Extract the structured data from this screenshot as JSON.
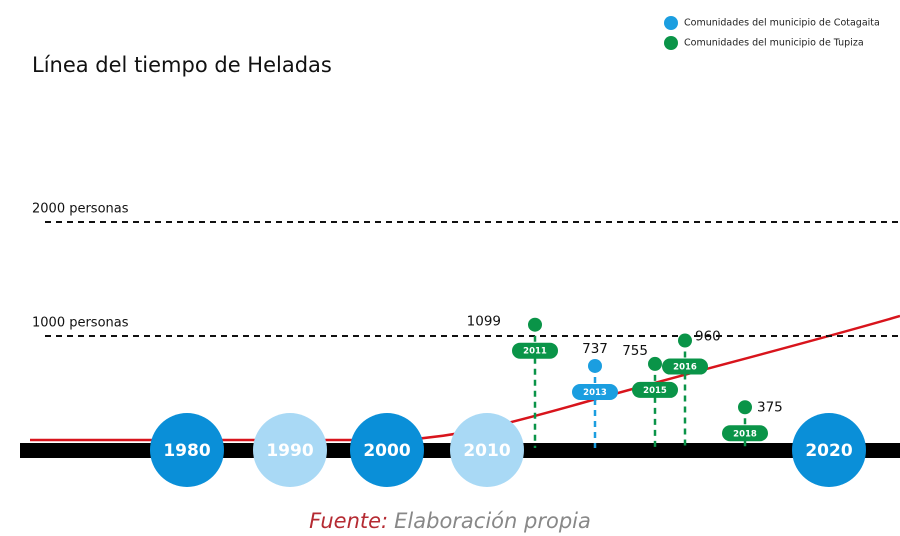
{
  "chart_data": {
    "type": "timeline",
    "title": "Línea del tiempo de Heladas",
    "source": {
      "prefix": "Fuente:",
      "text": "Elaboración propia"
    },
    "ylim": [
      0,
      2000
    ],
    "yticks": [
      {
        "value": 1000,
        "label": "1000 personas"
      },
      {
        "value": 2000,
        "label": "2000 personas"
      }
    ],
    "decades": [
      {
        "label": "1980",
        "color": "#0a8fd8"
      },
      {
        "label": "1990",
        "color": "#a9d9f5"
      },
      {
        "label": "2000",
        "color": "#0a8fd8"
      },
      {
        "label": "2010",
        "color": "#a9d9f5"
      },
      {
        "label": "2020",
        "color": "#0a8fd8"
      }
    ],
    "series": [
      {
        "name": "Comunidades del municipio de Cotagaita",
        "color": "#1b9ee0",
        "x": [
          2013
        ],
        "values": [
          737
        ]
      },
      {
        "name": "Comunidades del municipio de Tupiza",
        "color": "#0a9448",
        "x": [
          2011,
          2015,
          2016,
          2018
        ],
        "values": [
          1099,
          755,
          960,
          375
        ]
      }
    ]
  }
}
